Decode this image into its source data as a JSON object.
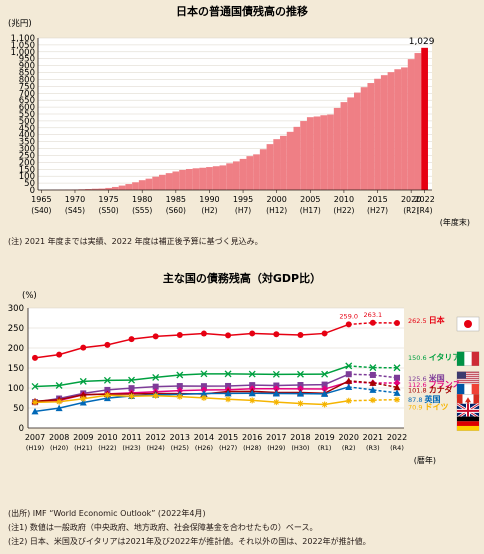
{
  "chart_data": [
    {
      "type": "bar",
      "title": "日本の普通国債残高の推移",
      "ylabel": "(兆円)",
      "xlabel": "(年度末)",
      "ylim": [
        0,
        1100
      ],
      "yticks": [
        0,
        50,
        100,
        150,
        200,
        250,
        300,
        350,
        400,
        450,
        500,
        550,
        600,
        650,
        700,
        750,
        800,
        850,
        900,
        950,
        1000,
        1050,
        1100
      ],
      "ytick_labels": [
        "0",
        "50",
        "100",
        "150",
        "200",
        "250",
        "300",
        "350",
        "400",
        "450",
        "500",
        "550",
        "600",
        "650",
        "700",
        "750",
        "800",
        "850",
        "900",
        "950",
        "1,000",
        "1,050",
        "1,100"
      ],
      "years": [
        1965,
        1966,
        1967,
        1968,
        1969,
        1970,
        1971,
        1972,
        1973,
        1974,
        1975,
        1976,
        1977,
        1978,
        1979,
        1980,
        1981,
        1982,
        1983,
        1984,
        1985,
        1986,
        1987,
        1988,
        1989,
        1990,
        1991,
        1992,
        1993,
        1994,
        1995,
        1996,
        1997,
        1998,
        1999,
        2000,
        2001,
        2002,
        2003,
        2004,
        2005,
        2006,
        2007,
        2008,
        2009,
        2010,
        2011,
        2012,
        2013,
        2014,
        2015,
        2016,
        2017,
        2018,
        2019,
        2020,
        2021,
        2022
      ],
      "values": [
        0.2,
        0.9,
        1.9,
        2.7,
        3.5,
        3.8,
        5.3,
        7.2,
        9.1,
        10.2,
        15.0,
        22.0,
        32.0,
        43.0,
        56.0,
        71.0,
        82.0,
        96.0,
        110.0,
        122.0,
        134.0,
        145.0,
        152.0,
        157.0,
        161.0,
        166.0,
        172.0,
        178.0,
        193.0,
        207.0,
        225.0,
        245.0,
        258.0,
        295.0,
        332.0,
        368.0,
        392.0,
        421.0,
        457.0,
        499.0,
        527.0,
        532.0,
        541.0,
        546.0,
        594.0,
        636.0,
        670.0,
        705.0,
        744.0,
        774.0,
        805.0,
        831.0,
        853.0,
        874.0,
        887.0,
        947.0,
        991.0,
        1029.0
      ],
      "highlight_color": "#e60012",
      "bar_color": "#ef7f85",
      "annotation": "1,029",
      "xticks": [
        {
          "year": 1965,
          "label": "1965",
          "sub": "(S40)"
        },
        {
          "year": 1970,
          "label": "1970",
          "sub": "(S45)"
        },
        {
          "year": 1975,
          "label": "1975",
          "sub": "(S50)"
        },
        {
          "year": 1980,
          "label": "1980",
          "sub": "(S55)"
        },
        {
          "year": 1985,
          "label": "1985",
          "sub": "(S60)"
        },
        {
          "year": 1990,
          "label": "1990",
          "sub": "(H2)"
        },
        {
          "year": 1995,
          "label": "1995",
          "sub": "(H7)"
        },
        {
          "year": 2000,
          "label": "2000",
          "sub": "(H12)"
        },
        {
          "year": 2005,
          "label": "2005",
          "sub": "(H17)"
        },
        {
          "year": 2010,
          "label": "2010",
          "sub": "(H22)"
        },
        {
          "year": 2015,
          "label": "2015",
          "sub": "(H27)"
        },
        {
          "year": 2020,
          "label": "2020",
          "sub": "(R2)"
        },
        {
          "year": 2022,
          "label": "2022",
          "sub": "(R4)"
        }
      ],
      "note": "(注) 2021 年度までは実績、2022 年度は補正後予算に基づく見込み。"
    },
    {
      "type": "line",
      "title": "主な国の債務残高（対GDP比）",
      "ylabel": "(%)",
      "xlabel": "(暦年)",
      "ylim": [
        0,
        300
      ],
      "yticks": [
        0,
        50,
        100,
        150,
        200,
        250,
        300
      ],
      "x": [
        2007,
        2008,
        2009,
        2010,
        2011,
        2012,
        2013,
        2014,
        2015,
        2016,
        2017,
        2018,
        2019,
        2020,
        2021,
        2022
      ],
      "xtick_labels": [
        "2007",
        "2008",
        "2009",
        "2010",
        "2011",
        "2012",
        "2013",
        "2014",
        "2015",
        "2016",
        "2017",
        "2018",
        "2019",
        "2020",
        "2021",
        "2022"
      ],
      "xtick_sub": [
        "(H19)",
        "(H20)",
        "(H21)",
        "(H22)",
        "(H23)",
        "(H24)",
        "(H25)",
        "(H26)",
        "(H27)",
        "(H28)",
        "(H29)",
        "(H30)",
        "(R1)",
        "(R2)",
        "(R3)",
        "(R4)"
      ],
      "estimate_from_index": 13,
      "series": [
        {
          "name": "日本",
          "value_label": "262.5",
          "color": "#e60012",
          "marker": "circle",
          "values": [
            175.4,
            183.4,
            201.0,
            207.9,
            222.1,
            229.0,
            232.5,
            236.1,
            231.6,
            236.4,
            234.5,
            232.5,
            236.4,
            259.0,
            263.1,
            262.5
          ],
          "point_labels": [
            {
              "index": 13,
              "text": "259.0"
            },
            {
              "index": 14,
              "text": "263.1"
            }
          ],
          "flag": "japan"
        },
        {
          "name": "イタリア",
          "value_label": "150.6",
          "color": "#00a040",
          "marker": "cross",
          "values": [
            103.9,
            106.2,
            116.6,
            119.2,
            119.7,
            126.5,
            132.5,
            135.4,
            135.3,
            134.8,
            134.2,
            134.4,
            134.6,
            155.3,
            150.9,
            150.6
          ],
          "flag": "italy"
        },
        {
          "name": "米国",
          "value_label": "125.6",
          "color": "#7d3c98",
          "marker": "square",
          "values": [
            64.6,
            73.7,
            86.6,
            95.2,
            99.6,
            103.3,
            104.9,
            104.6,
            105.1,
            107.2,
            106.2,
            107.5,
            108.5,
            134.5,
            132.6,
            125.6
          ],
          "flag": "usa"
        },
        {
          "name": "フランス",
          "value_label": "112.6",
          "color": "#e4007f",
          "marker": "diamond",
          "values": [
            64.5,
            68.8,
            83.0,
            85.3,
            87.8,
            90.6,
            93.4,
            94.9,
            95.6,
            98.0,
            98.1,
            97.8,
            97.4,
            115.1,
            112.6,
            112.6
          ],
          "flag": "france"
        },
        {
          "name": "カナダ",
          "value_label": "101.8",
          "color": "#a40000",
          "marker": "triangle",
          "values": [
            66.9,
            70.8,
            83.0,
            84.6,
            85.1,
            86.1,
            85.8,
            85.0,
            91.2,
            91.7,
            88.8,
            88.8,
            86.8,
            117.8,
            112.9,
            101.8
          ],
          "flag": "canada"
        },
        {
          "name": "英国",
          "value_label": "87.8",
          "color": "#0068b7",
          "marker": "triangle",
          "values": [
            41.7,
            49.7,
            63.7,
            74.6,
            80.1,
            83.2,
            84.2,
            86.1,
            86.7,
            86.8,
            86.3,
            85.8,
            85.2,
            102.6,
            95.3,
            87.8
          ],
          "flag": "uk"
        },
        {
          "name": "ドイツ",
          "value_label": "70.9",
          "color": "#f5b400",
          "marker": "asterisk",
          "values": [
            64.2,
            65.7,
            73.2,
            82.0,
            79.4,
            80.7,
            78.3,
            75.3,
            71.9,
            69.0,
            64.6,
            61.2,
            58.9,
            68.0,
            69.6,
            70.9
          ],
          "flag": "germany"
        }
      ],
      "notes": [
        "(出所) IMF “World Economic Outlook” (2022年4月)",
        "(注1) 数値は一般政府（中央政府、地方政府、社会保障基金を合わせたもの）ベース。",
        "(注2) 日本、米国及びイタリアは2021年及び2022年が推計値。それ以外の国は、2022年が推計値。"
      ]
    }
  ]
}
